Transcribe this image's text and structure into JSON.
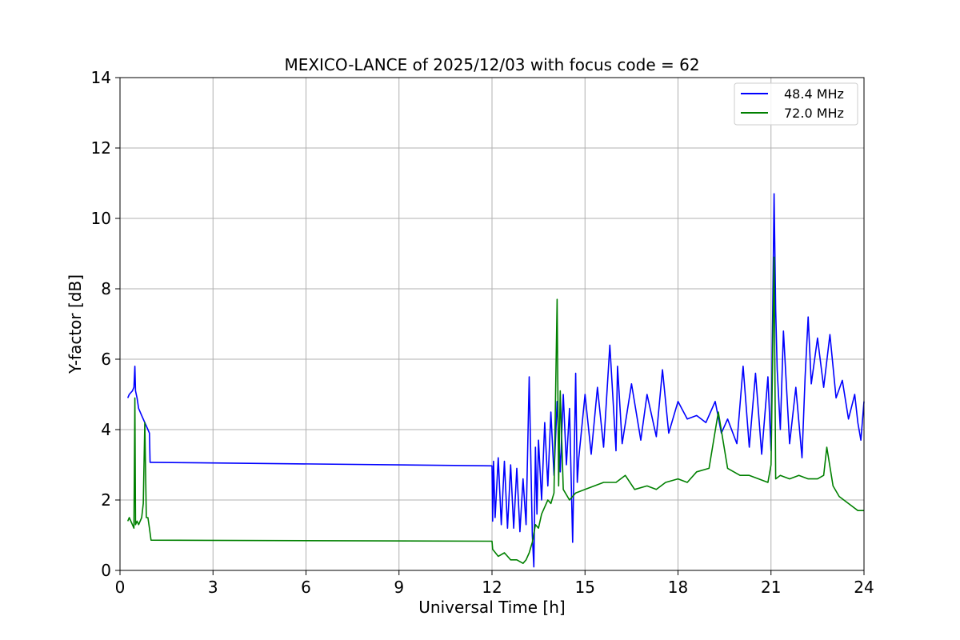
{
  "chart_data": {
    "type": "line",
    "title": "MEXICO-LANCE of 2025/12/03 with focus code = 62",
    "xlabel": "Universal Time [h]",
    "ylabel": "Y-factor [dB]",
    "xlim": [
      0,
      24
    ],
    "ylim": [
      0,
      14
    ],
    "xticks": [
      0,
      3,
      6,
      9,
      12,
      15,
      18,
      21,
      24
    ],
    "yticks": [
      0,
      2,
      4,
      6,
      8,
      10,
      12,
      14
    ],
    "grid": true,
    "legend_position": "top-right",
    "series": [
      {
        "name": "48.4 MHz",
        "color": "#0000ff",
        "x": [
          0.25,
          0.3,
          0.4,
          0.45,
          0.48,
          0.5,
          0.55,
          0.6,
          0.7,
          0.8,
          0.9,
          0.95,
          0.97,
          1.0,
          12.0,
          12.02,
          12.05,
          12.1,
          12.2,
          12.3,
          12.4,
          12.5,
          12.6,
          12.7,
          12.8,
          12.9,
          13.0,
          13.1,
          13.2,
          13.3,
          13.35,
          13.4,
          13.45,
          13.5,
          13.6,
          13.7,
          13.8,
          13.9,
          14.0,
          14.1,
          14.2,
          14.3,
          14.4,
          14.5,
          14.6,
          14.7,
          14.75,
          14.8,
          15.0,
          15.2,
          15.4,
          15.6,
          15.8,
          16.0,
          16.05,
          16.2,
          16.5,
          16.8,
          17.0,
          17.3,
          17.5,
          17.7,
          18.0,
          18.3,
          18.6,
          18.9,
          19.2,
          19.4,
          19.6,
          19.9,
          20.1,
          20.3,
          20.5,
          20.7,
          20.9,
          21.0,
          21.1,
          21.15,
          21.2,
          21.3,
          21.4,
          21.6,
          21.8,
          22.0,
          22.1,
          22.2,
          22.3,
          22.5,
          22.7,
          22.9,
          23.1,
          23.3,
          23.5,
          23.7,
          23.8,
          23.9,
          24.0
        ],
        "y": [
          4.9,
          5.0,
          5.1,
          5.2,
          5.8,
          5.1,
          4.9,
          4.6,
          4.4,
          4.2,
          4.0,
          3.9,
          3.07,
          3.07,
          2.97,
          1.4,
          3.1,
          1.5,
          3.2,
          1.3,
          3.1,
          1.2,
          3.0,
          1.2,
          2.9,
          1.1,
          2.6,
          1.3,
          5.5,
          1.0,
          0.1,
          3.5,
          1.6,
          3.7,
          2.0,
          4.2,
          2.4,
          4.5,
          2.7,
          4.8,
          2.8,
          5.0,
          3.0,
          4.6,
          0.8,
          5.6,
          2.5,
          3.2,
          5.0,
          3.3,
          5.2,
          3.5,
          6.4,
          3.4,
          5.8,
          3.6,
          5.3,
          3.7,
          5.0,
          3.8,
          5.7,
          3.9,
          4.8,
          4.3,
          4.4,
          4.2,
          4.8,
          3.9,
          4.3,
          3.6,
          5.8,
          3.5,
          5.6,
          3.3,
          5.5,
          3.4,
          10.7,
          7.4,
          5.7,
          4.0,
          6.8,
          3.6,
          5.2,
          3.2,
          5.5,
          7.2,
          5.3,
          6.6,
          5.2,
          6.7,
          4.9,
          5.4,
          4.3,
          5.0,
          4.2,
          3.7,
          4.8
        ]
      },
      {
        "name": "72.0 MHz",
        "color": "#008000",
        "x": [
          0.25,
          0.3,
          0.4,
          0.45,
          0.48,
          0.5,
          0.55,
          0.6,
          0.7,
          0.75,
          0.8,
          0.85,
          0.9,
          0.95,
          1.0,
          12.0,
          12.02,
          12.2,
          12.4,
          12.6,
          12.8,
          13.0,
          13.1,
          13.2,
          13.3,
          13.4,
          13.5,
          13.6,
          13.7,
          13.8,
          13.9,
          14.0,
          14.1,
          14.15,
          14.2,
          14.3,
          14.5,
          14.7,
          15.0,
          15.3,
          15.6,
          16.0,
          16.3,
          16.6,
          17.0,
          17.3,
          17.6,
          18.0,
          18.3,
          18.6,
          19.0,
          19.3,
          19.6,
          20.0,
          20.3,
          20.6,
          20.9,
          21.0,
          21.1,
          21.15,
          21.3,
          21.6,
          21.9,
          22.2,
          22.5,
          22.7,
          22.8,
          23.0,
          23.2,
          23.5,
          23.8,
          24.0
        ],
        "y": [
          1.4,
          1.5,
          1.3,
          1.2,
          4.9,
          1.3,
          1.4,
          1.3,
          1.5,
          1.9,
          4.2,
          1.5,
          1.5,
          1.2,
          0.86,
          0.83,
          0.6,
          0.4,
          0.5,
          0.3,
          0.3,
          0.2,
          0.3,
          0.5,
          0.8,
          1.3,
          1.2,
          1.6,
          1.8,
          2.0,
          1.9,
          2.2,
          7.7,
          2.4,
          5.1,
          2.3,
          2.0,
          2.2,
          2.3,
          2.4,
          2.5,
          2.5,
          2.7,
          2.3,
          2.4,
          2.3,
          2.5,
          2.6,
          2.5,
          2.8,
          2.9,
          4.5,
          2.9,
          2.7,
          2.7,
          2.6,
          2.5,
          3.0,
          8.9,
          2.6,
          2.7,
          2.6,
          2.7,
          2.6,
          2.6,
          2.7,
          3.5,
          2.4,
          2.1,
          1.9,
          1.7,
          1.7
        ]
      }
    ]
  }
}
